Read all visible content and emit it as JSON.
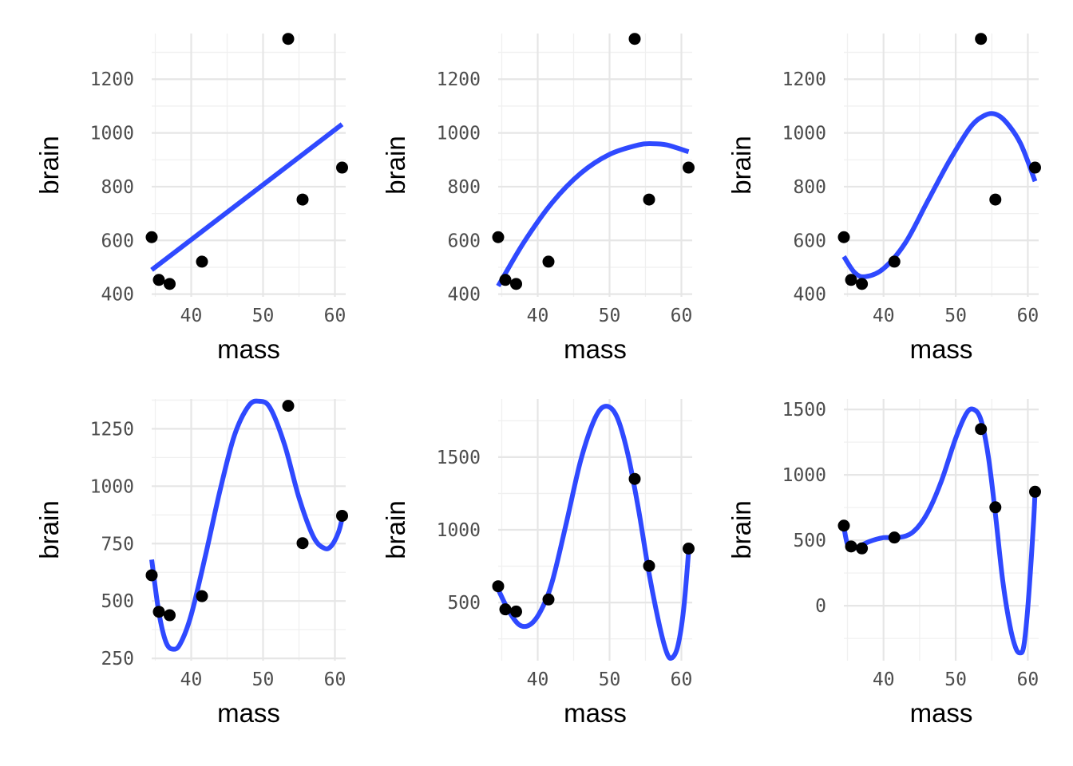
{
  "chart_data": [
    {
      "type": "scatter",
      "panel": 1,
      "xlabel": "mass",
      "ylabel": "brain",
      "xlim": [
        34.5,
        61.5
      ],
      "ylim": [
        390,
        1370
      ],
      "x_ticks": [
        40,
        50,
        60
      ],
      "y_ticks": [
        400,
        600,
        800,
        1000,
        1200
      ],
      "points": {
        "x": [
          34.5,
          35.5,
          37.0,
          41.5,
          53.5,
          55.5,
          61.0
        ],
        "y": [
          612,
          453,
          438,
          521,
          1350,
          752,
          871
        ]
      },
      "fit": {
        "degree": 1,
        "x": [
          34.5,
          61.0
        ],
        "y": [
          490,
          1032
        ]
      }
    },
    {
      "type": "scatter",
      "panel": 2,
      "xlabel": "mass",
      "ylabel": "brain",
      "xlim": [
        34.5,
        61.5
      ],
      "ylim": [
        390,
        1370
      ],
      "x_ticks": [
        40,
        50,
        60
      ],
      "y_ticks": [
        400,
        600,
        800,
        1000,
        1200
      ],
      "points": {
        "x": [
          34.5,
          35.5,
          37.0,
          41.5,
          53.5,
          55.5,
          61.0
        ],
        "y": [
          612,
          453,
          438,
          521,
          1350,
          752,
          871
        ]
      },
      "fit": {
        "degree": 2,
        "x": [
          34.5,
          38,
          42,
          46,
          50,
          54,
          56,
          58,
          61
        ],
        "y": [
          430,
          590,
          740,
          850,
          920,
          955,
          960,
          955,
          930
        ]
      }
    },
    {
      "type": "scatter",
      "panel": 3,
      "xlabel": "mass",
      "ylabel": "brain",
      "xlim": [
        34.5,
        61.5
      ],
      "ylim": [
        390,
        1370
      ],
      "x_ticks": [
        40,
        50,
        60
      ],
      "y_ticks": [
        400,
        600,
        800,
        1000,
        1200
      ],
      "points": {
        "x": [
          34.5,
          35.5,
          37.0,
          41.5,
          53.5,
          55.5,
          61.0
        ],
        "y": [
          612,
          453,
          438,
          521,
          1350,
          752,
          871
        ]
      },
      "fit": {
        "degree": 3,
        "x": [
          34.5,
          36,
          37.5,
          40,
          43,
          46,
          49,
          52,
          54,
          55.5,
          57,
          59,
          61
        ],
        "y": [
          540,
          480,
          465,
          495,
          590,
          740,
          890,
          1020,
          1065,
          1070,
          1040,
          960,
          820
        ]
      }
    },
    {
      "type": "scatter",
      "panel": 4,
      "xlabel": "mass",
      "ylabel": "brain",
      "xlim": [
        34.5,
        61.5
      ],
      "ylim": [
        240,
        1380
      ],
      "x_ticks": [
        40,
        50,
        60
      ],
      "y_ticks": [
        250,
        500,
        750,
        1000,
        1250
      ],
      "points": {
        "x": [
          34.5,
          35.5,
          37.0,
          41.5,
          53.5,
          55.5,
          61.0
        ],
        "y": [
          612,
          453,
          438,
          521,
          1350,
          752,
          871
        ]
      },
      "fit": {
        "degree": 4,
        "x": [
          34.5,
          35.5,
          36.5,
          37.5,
          38.5,
          40,
          42,
          44,
          46,
          48,
          49.5,
          51,
          53,
          55,
          57,
          58.5,
          59.5,
          60.5,
          61
        ],
        "y": [
          680,
          450,
          320,
          290,
          315,
          440,
          700,
          980,
          1220,
          1350,
          1370,
          1340,
          1180,
          950,
          780,
          730,
          740,
          800,
          860
        ]
      }
    },
    {
      "type": "scatter",
      "panel": 5,
      "xlabel": "mass",
      "ylabel": "brain",
      "xlim": [
        34.5,
        61.5
      ],
      "ylim": [
        100,
        1900
      ],
      "x_ticks": [
        40,
        50,
        60
      ],
      "y_ticks": [
        500,
        1000,
        1500
      ],
      "points": {
        "x": [
          34.5,
          35.5,
          37.0,
          41.5,
          53.5,
          55.5,
          61.0
        ],
        "y": [
          612,
          453,
          438,
          521,
          1350,
          752,
          871
        ]
      },
      "fit": {
        "degree": 5,
        "x": [
          34.5,
          36,
          37.5,
          39,
          40.5,
          42,
          44,
          46,
          48,
          49.5,
          51,
          52.5,
          54,
          55.5,
          57,
          58,
          58.7,
          59.5,
          60.3,
          61
        ],
        "y": [
          590,
          440,
          345,
          350,
          450,
          640,
          1050,
          1480,
          1770,
          1850,
          1780,
          1530,
          1150,
          700,
          330,
          150,
          120,
          200,
          450,
          850
        ]
      }
    },
    {
      "type": "scatter",
      "panel": 6,
      "xlabel": "mass",
      "ylabel": "brain",
      "xlim": [
        34.5,
        61.5
      ],
      "ylim": [
        -420,
        1580
      ],
      "x_ticks": [
        40,
        50,
        60
      ],
      "y_ticks": [
        0,
        500,
        1000,
        1500
      ],
      "points": {
        "x": [
          34.5,
          35.5,
          37.0,
          41.5,
          53.5,
          55.5,
          61.0
        ],
        "y": [
          612,
          453,
          438,
          521,
          1350,
          752,
          871
        ]
      },
      "fit": {
        "degree": 6,
        "x": [
          34.5,
          35,
          35.7,
          36.5,
          38,
          40,
          42,
          44,
          46,
          48,
          50,
          51.5,
          52.5,
          53.5,
          54.5,
          55.5,
          56.5,
          57.5,
          58.3,
          58.9,
          59.4,
          59.9,
          60.4,
          60.8,
          61
        ],
        "y": [
          600,
          470,
          440,
          450,
          490,
          520,
          520,
          560,
          700,
          950,
          1280,
          1470,
          1500,
          1420,
          1150,
          700,
          200,
          -150,
          -320,
          -360,
          -320,
          -80,
          300,
          650,
          870
        ]
      }
    }
  ]
}
